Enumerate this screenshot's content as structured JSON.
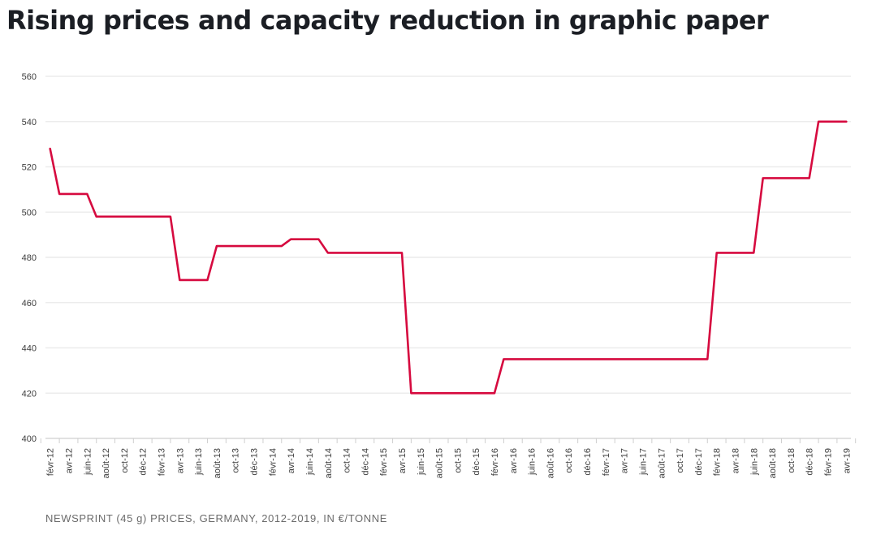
{
  "page": {
    "title": "Rising prices and capacity reduction in graphic paper",
    "caption": "NEWSPRINT (45 g) PRICES, GERMANY, 2012-2019, IN €/TONNE"
  },
  "chart_data": {
    "type": "line",
    "title": "Rising prices and capacity reduction in graphic paper",
    "caption": "NEWSPRINT (45 g) PRICES, GERMANY, 2012-2019, IN €/TONNE",
    "unit": "€/tonne",
    "grid": "horizontal",
    "legend": "none",
    "ylim": [
      400,
      560
    ],
    "yticks": [
      400,
      420,
      440,
      460,
      480,
      500,
      520,
      540,
      560
    ],
    "x_tick_labels": [
      "févr-12",
      "avr-12",
      "juin-12",
      "août-12",
      "oct-12",
      "déc-12",
      "févr-13",
      "avr-13",
      "juin-13",
      "août-13",
      "oct-13",
      "déc-13",
      "févr-14",
      "avr-14",
      "juin-14",
      "août-14",
      "oct-14",
      "déc-14",
      "févr-15",
      "avr-15",
      "juin-15",
      "août-15",
      "oct-15",
      "déc-15",
      "févr-16",
      "avr-16",
      "juin-16",
      "août-16",
      "oct-16",
      "déc-16",
      "févr-17",
      "avr-17",
      "juin-17",
      "août-17",
      "oct-17",
      "déc-17",
      "févr-18",
      "avr-18",
      "juin-18",
      "août-18",
      "oct-18",
      "déc-18",
      "févr-19",
      "avr-19"
    ],
    "x": [
      "févr-12",
      "mars-12",
      "avr-12",
      "mai-12",
      "juin-12",
      "juil-12",
      "août-12",
      "sept-12",
      "oct-12",
      "nov-12",
      "déc-12",
      "janv-13",
      "févr-13",
      "mars-13",
      "avr-13",
      "mai-13",
      "juin-13",
      "juil-13",
      "août-13",
      "sept-13",
      "oct-13",
      "nov-13",
      "déc-13",
      "janv-14",
      "févr-14",
      "mars-14",
      "avr-14",
      "mai-14",
      "juin-14",
      "juil-14",
      "août-14",
      "sept-14",
      "oct-14",
      "nov-14",
      "déc-14",
      "janv-15",
      "févr-15",
      "mars-15",
      "avr-15",
      "mai-15",
      "juin-15",
      "juil-15",
      "août-15",
      "sept-15",
      "oct-15",
      "nov-15",
      "déc-15",
      "janv-16",
      "févr-16",
      "mars-16",
      "avr-16",
      "mai-16",
      "juin-16",
      "juil-16",
      "août-16",
      "sept-16",
      "oct-16",
      "nov-16",
      "déc-16",
      "janv-17",
      "févr-17",
      "mars-17",
      "avr-17",
      "mai-17",
      "juin-17",
      "juil-17",
      "août-17",
      "sept-17",
      "oct-17",
      "nov-17",
      "déc-17",
      "janv-18",
      "févr-18",
      "mars-18",
      "avr-18",
      "mai-18",
      "juin-18",
      "juil-18",
      "août-18",
      "sept-18",
      "oct-18",
      "nov-18",
      "déc-18",
      "janv-19",
      "févr-19",
      "mars-19",
      "avr-19"
    ],
    "series": [
      {
        "name": "Newsprint (45 g) price, Germany",
        "color": "#d60a3f",
        "values": [
          528,
          508,
          508,
          508,
          508,
          498,
          498,
          498,
          498,
          498,
          498,
          498,
          498,
          498,
          470,
          470,
          470,
          470,
          485,
          485,
          485,
          485,
          485,
          485,
          485,
          485,
          488,
          488,
          488,
          488,
          482,
          482,
          482,
          482,
          482,
          482,
          482,
          482,
          482,
          420,
          420,
          420,
          420,
          420,
          420,
          420,
          420,
          420,
          420,
          435,
          435,
          435,
          435,
          435,
          435,
          435,
          435,
          435,
          435,
          435,
          435,
          435,
          435,
          435,
          435,
          435,
          435,
          435,
          435,
          435,
          435,
          435,
          482,
          482,
          482,
          482,
          482,
          515,
          515,
          515,
          515,
          515,
          515,
          540,
          540,
          540,
          540
        ]
      }
    ],
    "colors": {
      "line": "#d60a3f",
      "gridline": "#ececec",
      "axis_line": "#cfcfcf",
      "axis_labels": "#3d3d3d",
      "title": "#1b1e24",
      "caption": "#6b6b6b"
    }
  }
}
